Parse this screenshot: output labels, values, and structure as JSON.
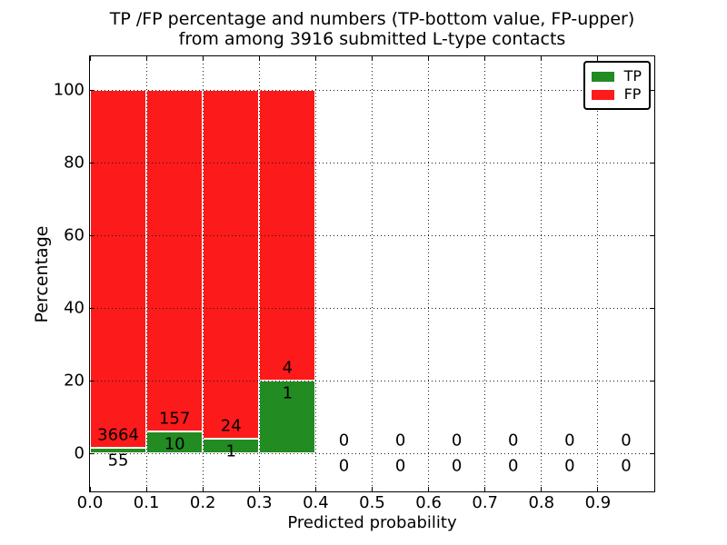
{
  "chart_data": {
    "type": "bar",
    "stacked": true,
    "title_line1": "TP /FP percentage and numbers (TP-bottom value, FP-upper)",
    "title_line2": "from among 3916 submitted L-type contacts",
    "title": "TP /FP percentage and numbers (TP-bottom value, FP-upper)\nfrom among 3916 submitted L-type contacts",
    "xlabel": "Predicted probability",
    "ylabel": "Percentage",
    "total_submitted": 3916,
    "xlim": [
      0.0,
      1.0
    ],
    "ylim": [
      -10.5,
      109.25
    ],
    "x_ticks": [
      {
        "value": 0.0,
        "label": "0.0"
      },
      {
        "value": 0.1,
        "label": "0.1"
      },
      {
        "value": 0.2,
        "label": "0.2"
      },
      {
        "value": 0.3,
        "label": "0.3"
      },
      {
        "value": 0.4,
        "label": "0.4"
      },
      {
        "value": 0.5,
        "label": "0.5"
      },
      {
        "value": 0.6,
        "label": "0.6"
      },
      {
        "value": 0.7,
        "label": "0.7"
      },
      {
        "value": 0.8,
        "label": "0.8"
      },
      {
        "value": 0.9,
        "label": "0.9"
      }
    ],
    "y_ticks": [
      {
        "value": 0,
        "label": "0"
      },
      {
        "value": 20,
        "label": "20"
      },
      {
        "value": 40,
        "label": "40"
      },
      {
        "value": 60,
        "label": "60"
      },
      {
        "value": 80,
        "label": "80"
      },
      {
        "value": 100,
        "label": "100"
      }
    ],
    "grid": {
      "style": "dotted",
      "color": "#1a1a1a",
      "drawn_above_bars": true
    },
    "bin_width": 0.1,
    "bar_edge_color": "#ffffff",
    "bins": [
      {
        "x_start": 0.0,
        "x_end": 0.1,
        "tp_count": 55,
        "fp_count": 3664,
        "tp_pct": 1.48,
        "fp_pct": 98.52,
        "has_bar": true
      },
      {
        "x_start": 0.1,
        "x_end": 0.2,
        "tp_count": 10,
        "fp_count": 157,
        "tp_pct": 5.99,
        "fp_pct": 94.01,
        "has_bar": true
      },
      {
        "x_start": 0.2,
        "x_end": 0.3,
        "tp_count": 1,
        "fp_count": 24,
        "tp_pct": 4.0,
        "fp_pct": 96.0,
        "has_bar": true
      },
      {
        "x_start": 0.3,
        "x_end": 0.4,
        "tp_count": 1,
        "fp_count": 4,
        "tp_pct": 20.0,
        "fp_pct": 80.0,
        "has_bar": true
      },
      {
        "x_start": 0.4,
        "x_end": 0.5,
        "tp_count": 0,
        "fp_count": 0,
        "tp_pct": 0,
        "fp_pct": 0,
        "has_bar": false
      },
      {
        "x_start": 0.5,
        "x_end": 0.6,
        "tp_count": 0,
        "fp_count": 0,
        "tp_pct": 0,
        "fp_pct": 0,
        "has_bar": false
      },
      {
        "x_start": 0.6,
        "x_end": 0.7,
        "tp_count": 0,
        "fp_count": 0,
        "tp_pct": 0,
        "fp_pct": 0,
        "has_bar": false
      },
      {
        "x_start": 0.7,
        "x_end": 0.8,
        "tp_count": 0,
        "fp_count": 0,
        "tp_pct": 0,
        "fp_pct": 0,
        "has_bar": false
      },
      {
        "x_start": 0.8,
        "x_end": 0.9,
        "tp_count": 0,
        "fp_count": 0,
        "tp_pct": 0,
        "fp_pct": 0,
        "has_bar": false
      },
      {
        "x_start": 0.9,
        "x_end": 1.0,
        "tp_count": 0,
        "fp_count": 0,
        "tp_pct": 0,
        "fp_pct": 0,
        "has_bar": false
      }
    ],
    "series": [
      {
        "name": "TP",
        "color": "#228b22",
        "position": "bottom"
      },
      {
        "name": "FP",
        "color": "#fc1a1a",
        "position": "top"
      }
    ],
    "legend": {
      "position": "upper right",
      "entries": [
        {
          "label": "TP",
          "color": "#228b22"
        },
        {
          "label": "FP",
          "color": "#fc1a1a"
        }
      ]
    }
  }
}
